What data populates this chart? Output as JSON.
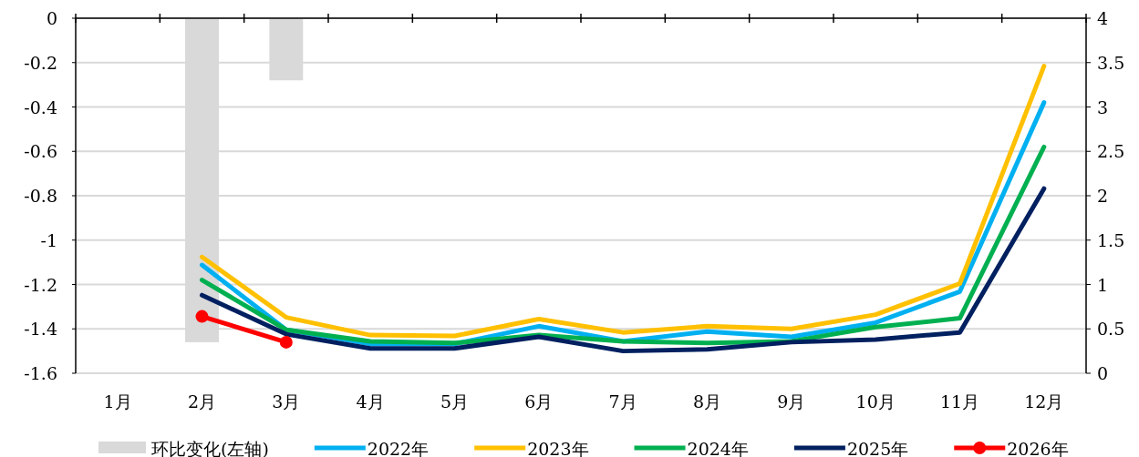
{
  "chart_data": {
    "type": "line",
    "categories": [
      "1月",
      "2月",
      "3月",
      "4月",
      "5月",
      "6月",
      "7月",
      "8月",
      "9月",
      "10月",
      "11月",
      "12月"
    ],
    "series": [
      {
        "name": "环比变化(左轴)",
        "type": "bar",
        "color": "#d9d9d9",
        "values": [
          null,
          -1.46,
          -0.28,
          null,
          null,
          null,
          null,
          null,
          null,
          null,
          null,
          null
        ]
      },
      {
        "name": "2022年",
        "axis": "y2",
        "color": "#00b0f0",
        "values": [
          null,
          1.22,
          0.49,
          0.33,
          0.33,
          0.53,
          0.36,
          0.47,
          0.41,
          0.57,
          0.92,
          3.05
        ]
      },
      {
        "name": "2023年",
        "axis": "y2",
        "color": "#ffc000",
        "values": [
          null,
          1.31,
          0.63,
          0.43,
          0.42,
          0.61,
          0.46,
          0.53,
          0.5,
          0.66,
          1.01,
          3.46
        ]
      },
      {
        "name": "2024年",
        "axis": "y2",
        "color": "#00b050",
        "values": [
          null,
          1.05,
          0.49,
          0.36,
          0.34,
          0.43,
          0.36,
          0.34,
          0.36,
          0.52,
          0.62,
          2.55
        ]
      },
      {
        "name": "2025年",
        "axis": "y2",
        "color": "#002060",
        "values": [
          null,
          0.88,
          0.44,
          0.28,
          0.28,
          0.41,
          0.25,
          0.27,
          0.35,
          0.38,
          0.46,
          2.08
        ]
      },
      {
        "name": "2026年",
        "axis": "y2",
        "color": "#ff0000",
        "marker": "circle",
        "values": [
          null,
          0.64,
          0.35,
          null,
          null,
          null,
          null,
          null,
          null,
          null,
          null,
          null
        ]
      }
    ],
    "ylim": [
      -1.6,
      0
    ],
    "yticks": [
      -1.6,
      -1.4,
      -1.2,
      -1,
      -0.8,
      -0.6,
      -0.4,
      -0.2,
      0
    ],
    "y2lim": [
      0,
      4
    ],
    "y2ticks": [
      0,
      0.5,
      1,
      1.5,
      2,
      2.5,
      3,
      3.5,
      4
    ],
    "grid": "y",
    "legend": "bottom",
    "line_style": "solid"
  }
}
